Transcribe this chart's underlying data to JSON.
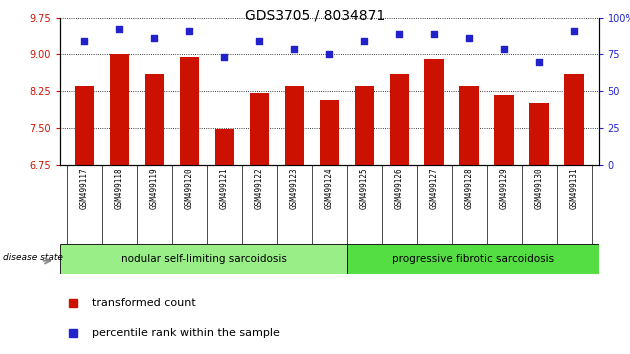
{
  "title": "GDS3705 / 8034871",
  "samples": [
    "GSM499117",
    "GSM499118",
    "GSM499119",
    "GSM499120",
    "GSM499121",
    "GSM499122",
    "GSM499123",
    "GSM499124",
    "GSM499125",
    "GSM499126",
    "GSM499127",
    "GSM499128",
    "GSM499129",
    "GSM499130",
    "GSM499131"
  ],
  "bar_values": [
    8.35,
    9.01,
    8.6,
    8.95,
    7.48,
    8.22,
    8.35,
    8.06,
    8.35,
    8.6,
    8.9,
    8.35,
    8.17,
    8.0,
    8.6
  ],
  "percentile_values": [
    84,
    92,
    86,
    91,
    73,
    84,
    79,
    75,
    84,
    89,
    89,
    86,
    79,
    70,
    91
  ],
  "ylim_left": [
    6.75,
    9.75
  ],
  "ylim_right": [
    0,
    100
  ],
  "yticks_left": [
    6.75,
    7.5,
    8.25,
    9.0,
    9.75
  ],
  "yticks_right": [
    0,
    25,
    50,
    75,
    100
  ],
  "bar_color": "#cc1100",
  "dot_color": "#2222cc",
  "group1_label": "nodular self-limiting sarcoidosis",
  "group2_label": "progressive fibrotic sarcoidosis",
  "group1_count": 8,
  "disease_state_label": "disease state",
  "legend1_label": "transformed count",
  "legend2_label": "percentile rank within the sample",
  "group_color1": "#99ee88",
  "group_color2": "#55dd44",
  "tick_bg_color": "#cccccc",
  "grid_yticks": [
    7.5,
    8.25,
    9.0,
    9.75
  ]
}
